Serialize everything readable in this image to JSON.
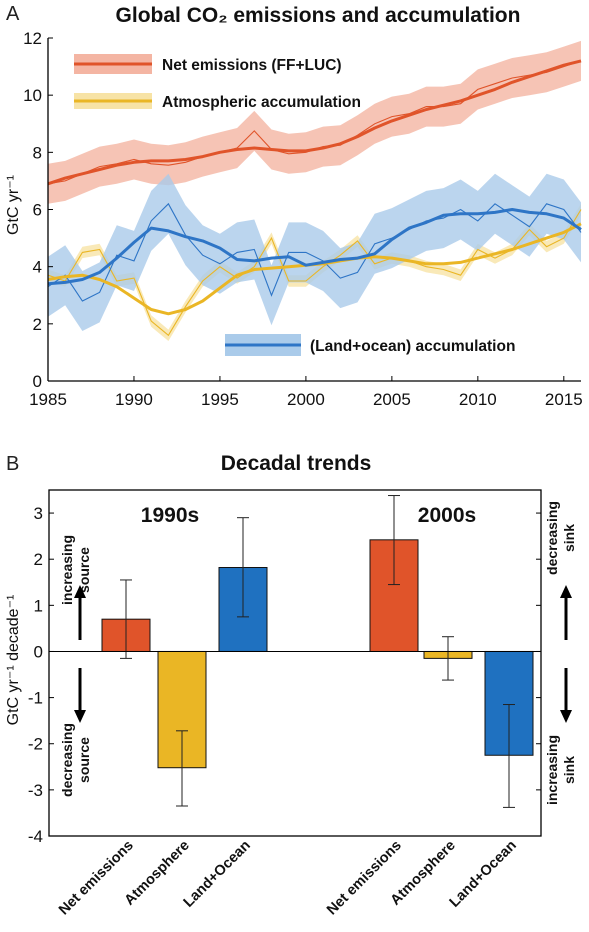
{
  "chart_data": [
    {
      "panel": "A",
      "type": "line",
      "title": "Global CO₂ emissions and accumulation",
      "ylabel": "GtC yr⁻¹",
      "xlim": [
        1985,
        2016
      ],
      "ylim": [
        0,
        12
      ],
      "xticks": [
        1985,
        1990,
        1995,
        2000,
        2005,
        2010,
        2015
      ],
      "yticks": [
        0,
        2,
        4,
        6,
        8,
        10,
        12
      ],
      "x": [
        1985,
        1986,
        1987,
        1988,
        1989,
        1990,
        1991,
        1992,
        1993,
        1994,
        1995,
        1996,
        1997,
        1998,
        1999,
        2000,
        2001,
        2002,
        2003,
        2004,
        2005,
        2006,
        2007,
        2008,
        2009,
        2010,
        2011,
        2012,
        2013,
        2014,
        2015,
        2016
      ],
      "series": [
        {
          "name": "Net emissions (FF+LUC)",
          "color": "#e0542a",
          "band_color": "#f4b5a3",
          "smooth": [
            6.9,
            7.1,
            7.25,
            7.4,
            7.55,
            7.65,
            7.7,
            7.7,
            7.75,
            7.85,
            8.0,
            8.1,
            8.15,
            8.1,
            8.05,
            8.05,
            8.15,
            8.3,
            8.55,
            8.85,
            9.1,
            9.3,
            9.5,
            9.65,
            9.8,
            10.0,
            10.2,
            10.45,
            10.65,
            10.85,
            11.05,
            11.2
          ],
          "annual": [
            6.9,
            7.0,
            7.25,
            7.5,
            7.6,
            7.75,
            7.6,
            7.55,
            7.65,
            7.85,
            8.0,
            8.15,
            8.75,
            8.1,
            7.95,
            8.0,
            8.2,
            8.25,
            8.6,
            9.0,
            9.25,
            9.35,
            9.6,
            9.6,
            9.7,
            10.2,
            10.4,
            10.6,
            10.7,
            10.8,
            11.0,
            11.2
          ],
          "band": 0.7
        },
        {
          "name": "Atmospheric accumulation",
          "color": "#eab625",
          "band_color": "#f7e3a6",
          "smooth": [
            3.55,
            3.65,
            3.7,
            3.55,
            3.3,
            2.9,
            2.5,
            2.35,
            2.5,
            2.8,
            3.25,
            3.7,
            3.9,
            3.95,
            4.0,
            4.05,
            4.1,
            4.2,
            4.3,
            4.35,
            4.3,
            4.2,
            4.1,
            4.1,
            4.15,
            4.3,
            4.45,
            4.6,
            4.8,
            5.0,
            5.2,
            5.5
          ],
          "annual": [
            3.7,
            3.5,
            4.5,
            4.6,
            3.5,
            3.6,
            2.1,
            1.6,
            2.6,
            3.5,
            4.0,
            3.6,
            4.0,
            5.0,
            3.5,
            3.5,
            4.0,
            4.4,
            4.9,
            4.1,
            4.3,
            4.2,
            4.0,
            3.9,
            3.7,
            4.6,
            4.3,
            4.6,
            5.3,
            4.7,
            5.0,
            6.0
          ],
          "band": 0.2
        },
        {
          "name": "(Land+ocean) accumulation",
          "color": "#2e75c6",
          "band_color": "#aacbea",
          "smooth": [
            3.4,
            3.45,
            3.55,
            3.8,
            4.3,
            4.85,
            5.35,
            5.25,
            5.05,
            4.9,
            4.65,
            4.25,
            4.2,
            4.3,
            4.35,
            4.05,
            4.15,
            4.25,
            4.3,
            4.45,
            4.95,
            5.35,
            5.55,
            5.8,
            5.85,
            5.85,
            5.9,
            6.0,
            5.9,
            5.85,
            5.7,
            5.3
          ],
          "annual": [
            3.3,
            3.7,
            2.8,
            3.1,
            4.4,
            4.2,
            5.6,
            6.2,
            5.1,
            4.4,
            4.1,
            4.5,
            4.6,
            3.0,
            4.5,
            4.5,
            4.2,
            3.6,
            3.8,
            4.8,
            5.0,
            5.3,
            5.6,
            5.7,
            6.0,
            5.6,
            6.2,
            5.8,
            5.4,
            6.2,
            6.0,
            5.2
          ],
          "band": 1.05
        }
      ],
      "legend": "top-left"
    },
    {
      "panel": "B",
      "type": "bar",
      "title": "Decadal trends",
      "ylabel": "GtC yr⁻¹ decade⁻¹",
      "ylim": [
        -4,
        3.5
      ],
      "yticks": [
        -4,
        -3,
        -2,
        -1,
        0,
        1,
        2,
        3
      ],
      "groups": [
        "1990s",
        "2000s"
      ],
      "categories": [
        "Net emissions",
        "Atmosphere",
        "Land+Ocean"
      ],
      "colors": [
        "#e0542a",
        "#eab625",
        "#1f71c0"
      ],
      "series": [
        {
          "group": "1990s",
          "values": [
            0.7,
            -2.52,
            1.82
          ],
          "errors": [
            [
              -0.15,
              1.55
            ],
            [
              -3.35,
              -1.72
            ],
            [
              0.75,
              2.9
            ]
          ]
        },
        {
          "group": "2000s",
          "values": [
            2.42,
            -0.15,
            -2.25
          ],
          "errors": [
            [
              1.45,
              3.38
            ],
            [
              -0.62,
              0.32
            ],
            [
              -3.38,
              -1.15
            ]
          ]
        }
      ],
      "side_labels": {
        "left_top": [
          "increasing",
          "source"
        ],
        "left_bottom": [
          "decreasing",
          "source"
        ],
        "right_top": [
          "decreasing",
          "sink"
        ],
        "right_bottom": [
          "increasing",
          "sink"
        ]
      }
    }
  ]
}
